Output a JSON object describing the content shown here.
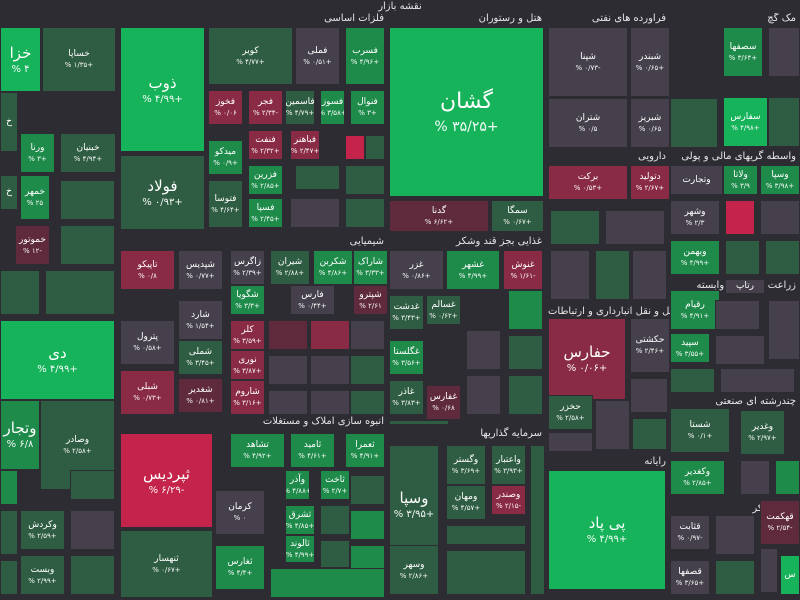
{
  "page": {
    "title": "نقشه بازار"
  },
  "colors": {
    "bg": "#2e2c33",
    "pos_strong": "#16b35a",
    "pos_mid": "#1f8b4b",
    "pos_weak": "#2f5d43",
    "neutral": "#45404b",
    "neg_weak": "#5e2a3c",
    "neg_mid": "#8a2b45",
    "neg_strong": "#c4234a"
  },
  "sectors": [
    {
      "label": "فلزات اساسی"
    },
    {
      "label": "هتل و رستوران"
    },
    {
      "label": "فرآورده های نفتی"
    },
    {
      "label": "مک گچ"
    },
    {
      "label": "دارویی"
    },
    {
      "label": "واسطه گریهای مالی و پولی"
    },
    {
      "label": "شیمیایی"
    },
    {
      "label": "غذایی بجز قند وشکر"
    },
    {
      "label": "زراعت و خدمات وابسته"
    },
    {
      "label": "حمل و نقل انبارداری و ارتباطات"
    },
    {
      "label": "چندرشته ای صنعتی"
    },
    {
      "label": "انبوه سازی املاک و مستغلات"
    },
    {
      "label": "سرمایه گذاریها"
    },
    {
      "label": "رایانه"
    },
    {
      "label": "قند و شکر"
    }
  ],
  "tiles": [
    {
      "name": "خزا",
      "pct": "% ۴"
    },
    {
      "name": "خساپا",
      "pct": "% ۱/۳۵+"
    },
    {
      "name": "خ",
      "pct": ""
    },
    {
      "name": "ورنا",
      "pct": "% ۳+"
    },
    {
      "name": "خبنیان",
      "pct": "% ۴/۹۴+"
    },
    {
      "name": "خ",
      "pct": ""
    },
    {
      "name": "خمهر",
      "pct": "% ۲۵"
    },
    {
      "name": "خموتور",
      "pct": "% ۱۲-"
    },
    {
      "name": "دی",
      "pct": "% ۴/۹۹+"
    },
    {
      "name": "وتجار",
      "pct": "% ۶/۸"
    },
    {
      "name": "وصادر",
      "pct": "% ۲/۵۸+"
    },
    {
      "name": "وکردش",
      "pct": "% ۲/۵۹+"
    },
    {
      "name": "وبست",
      "pct": "% ۲/۹۹+"
    },
    {
      "name": "ذوب",
      "pct": "% ۴/۹۹+"
    },
    {
      "name": "فولاد",
      "pct": "% ۰/۹۳+"
    },
    {
      "name": "کویر",
      "pct": "% ۴/۷۷+"
    },
    {
      "name": "فملی",
      "pct": "% ۰/۵۱+"
    },
    {
      "name": "فسرب",
      "pct": "% ۴/۹۶+"
    },
    {
      "name": "فخوز",
      "pct": "% ۰/۰۶"
    },
    {
      "name": "فجر",
      "pct": "% ۲/۳۴-"
    },
    {
      "name": "فاسمین",
      "pct": "% ۴/۷۹+"
    },
    {
      "name": "فسوز",
      "pct": "% ۳/۵۸+"
    },
    {
      "name": "فنوال",
      "pct": "% ۳+"
    },
    {
      "name": "میدکو",
      "pct": "% ۰/۹+"
    },
    {
      "name": "فنفت",
      "pct": "% ۲/۳۲+"
    },
    {
      "name": "فباهنر",
      "pct": "% ۲/۴۷+"
    },
    {
      "name": "فزرین",
      "pct": "% ۲/۸۵+"
    },
    {
      "name": "فتوسا",
      "pct": "% ۴/۶۴+"
    },
    {
      "name": "فسپا",
      "pct": "% ۲/۴۵+"
    },
    {
      "name": "گشان",
      "pct": "% ۳۵/۲۵+"
    },
    {
      "name": "گدنا",
      "pct": "% ۶/۶۲+"
    },
    {
      "name": "سمگا",
      "pct": "% ۰/۶۷+"
    },
    {
      "name": "شپنا",
      "pct": "% ۰/۷۳-"
    },
    {
      "name": "شبندر",
      "pct": "% ۰/۶۵+"
    },
    {
      "name": "شتران",
      "pct": "% ۰/۵"
    },
    {
      "name": "شبریز",
      "pct": "% ۰/۶۵"
    },
    {
      "name": "سصفها",
      "pct": "% ۳/۶۴+"
    },
    {
      "name": "سفارس",
      "pct": "% ۴/۹۸+"
    },
    {
      "name": "برکت",
      "pct": "% ۰/۵۳+"
    },
    {
      "name": "دتولید",
      "pct": "% ۲/۶۷+"
    },
    {
      "name": "وتجارت",
      "pct": ""
    },
    {
      "name": "ولاتا",
      "pct": "% ۳/۹"
    },
    {
      "name": "وسپا",
      "pct": "% ۳/۹۸+"
    },
    {
      "name": "وشهر",
      "pct": "% ۲/۳"
    },
    {
      "name": "وبهمن",
      "pct": "% ۴/۹۹+"
    },
    {
      "name": "تاپیکو",
      "pct": "% ۰/۸"
    },
    {
      "name": "شپدیس",
      "pct": "% ۰/۷۷+"
    },
    {
      "name": "زاگرس",
      "pct": "% ۲/۳۹+"
    },
    {
      "name": "شیران",
      "pct": "% ۲/۸۸+"
    },
    {
      "name": "شکربن",
      "pct": "% ۴/۸۶+"
    },
    {
      "name": "شاراک",
      "pct": "% ۳/۳۳+"
    },
    {
      "name": "شگویا",
      "pct": "% ۳/۳+"
    },
    {
      "name": "فارس",
      "pct": "% ۰/۴۴+"
    },
    {
      "name": "شپترو",
      "pct": "% ۲/۶۱"
    },
    {
      "name": "شارد",
      "pct": "% ۱/۵۴+"
    },
    {
      "name": "پترول",
      "pct": "% ۰/۵۸+"
    },
    {
      "name": "کلر",
      "pct": "% ۳/۵۹+"
    },
    {
      "name": "شملی",
      "pct": "% ۳/۴۵+"
    },
    {
      "name": "نوری",
      "pct": "% ۳/۸۷+"
    },
    {
      "name": "شبلی",
      "pct": "% ۰/۷۳+"
    },
    {
      "name": "شغدیر",
      "pct": "% ۰/۸۱+"
    },
    {
      "name": "شاروم",
      "pct": "% ۳/۱۶+"
    },
    {
      "name": "غزر",
      "pct": "% ۰/۸۶+"
    },
    {
      "name": "غشهر",
      "pct": "% ۴/۹۹+"
    },
    {
      "name": "غنوش",
      "pct": "% ۱/۶۱-"
    },
    {
      "name": "غدشت",
      "pct": "% ۳/۴۳+"
    },
    {
      "name": "غسالم",
      "pct": "% ۰/۶۲+"
    },
    {
      "name": "غگلستا",
      "pct": "% ۳/۵۶+"
    },
    {
      "name": "غاذر",
      "pct": "% ۳/۸۳+"
    },
    {
      "name": "غفارس",
      "pct": "% ۰/۶۸"
    },
    {
      "name": "رتاپ",
      "pct": ""
    },
    {
      "name": "رقیام",
      "pct": "% ۴/۹۱+"
    },
    {
      "name": "سپید",
      "pct": "% ۳/۵۵+"
    },
    {
      "name": "حفارس",
      "pct": "% ۰/۰۶+"
    },
    {
      "name": "حکشتی",
      "pct": "% ۲/۴۶+"
    },
    {
      "name": "حخزر",
      "pct": "% ۲/۵۸+"
    },
    {
      "name": "شستا",
      "pct": "% ۰/۱+"
    },
    {
      "name": "وغدیر",
      "pct": "% ۲/۹۷+"
    },
    {
      "name": "وکغدیر",
      "pct": "% ۲/۸۵+"
    },
    {
      "name": "تشاهد",
      "pct": "% ۴/۹۲+"
    },
    {
      "name": "ثامید",
      "pct": "% ۴/۶۱+"
    },
    {
      "name": "ثعمرا",
      "pct": "% ۴/۹۱+"
    },
    {
      "name": "ثپردیس",
      "pct": "% ۶/۲۹-"
    },
    {
      "name": "وآذر",
      "pct": "% ۴/۸۸+"
    },
    {
      "name": "ثاخت",
      "pct": "% ۲/۷+"
    },
    {
      "name": "کرمان",
      "pct": "% ۰"
    },
    {
      "name": "ثشرق",
      "pct": "% ۴/۸۵+"
    },
    {
      "name": "ثالوند",
      "pct": "% ۴/۹۹+"
    },
    {
      "name": "ثنهسار",
      "pct": "% ۰/۶۷+"
    },
    {
      "name": "ثغارس",
      "pct": "% ۴/۴+"
    },
    {
      "name": "وسپا",
      "pct": "% ۳/۹۵+"
    },
    {
      "name": "وگستر",
      "pct": "% ۳/۶۹+"
    },
    {
      "name": "واعتبار",
      "pct": "% ۳/۹۳+"
    },
    {
      "name": "ومهان",
      "pct": "% ۴/۵۷+"
    },
    {
      "name": "وصندر",
      "pct": "% ۲/۱۵-"
    },
    {
      "name": "وسهر",
      "pct": "% ۲/۸۶+"
    },
    {
      "name": "پی پاد",
      "pct": "% ۴/۹۹+"
    },
    {
      "name": "قثابت",
      "pct": "% ۰/۹۷-"
    },
    {
      "name": "قصفها",
      "pct": "% ۳/۶۵+"
    },
    {
      "name": "قهکمت",
      "pct": "% ۲/۵۴-"
    },
    {
      "name": "س",
      "pct": ""
    }
  ]
}
